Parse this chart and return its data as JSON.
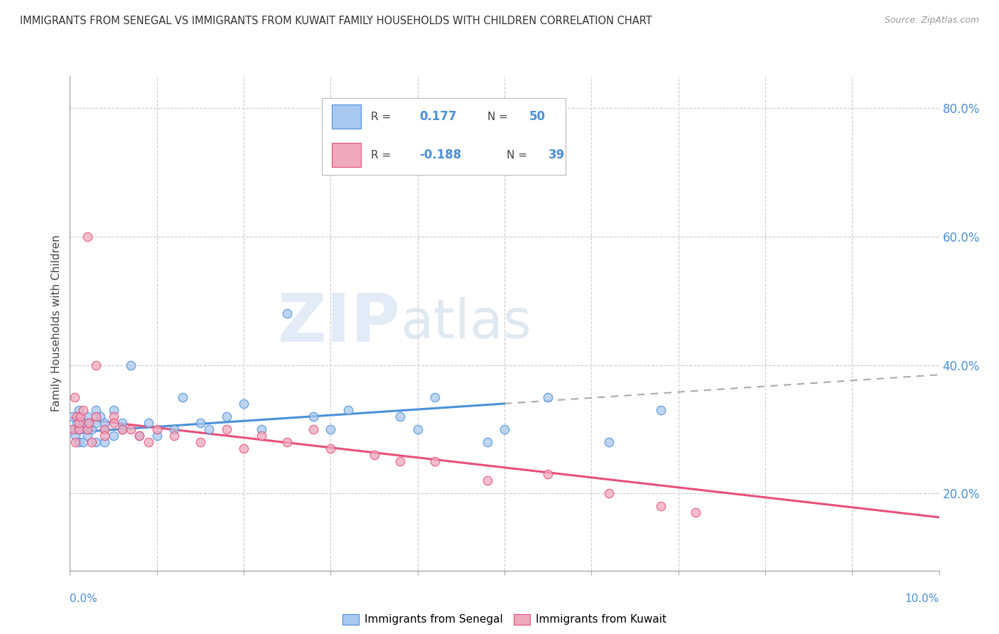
{
  "title": "IMMIGRANTS FROM SENEGAL VS IMMIGRANTS FROM KUWAIT FAMILY HOUSEHOLDS WITH CHILDREN CORRELATION CHART",
  "source": "Source: ZipAtlas.com",
  "ylabel": "Family Households with Children",
  "right_yticks": [
    "20.0%",
    "40.0%",
    "60.0%",
    "80.0%"
  ],
  "right_ytick_vals": [
    0.2,
    0.4,
    0.6,
    0.8
  ],
  "r_senegal": 0.177,
  "n_senegal": 50,
  "r_kuwait": -0.188,
  "n_kuwait": 39,
  "color_senegal": "#a8c8f0",
  "color_kuwait": "#f0a8bc",
  "color_senegal_line": "#4a90d9",
  "color_kuwait_line": "#e8507a",
  "watermark_zip": "ZIP",
  "watermark_atlas": "atlas",
  "xlim": [
    0.0,
    0.1
  ],
  "ylim": [
    0.08,
    0.85
  ],
  "senegal_x": [
    0.0003,
    0.0005,
    0.0006,
    0.0008,
    0.001,
    0.001,
    0.001,
    0.0012,
    0.0012,
    0.0015,
    0.0015,
    0.002,
    0.002,
    0.002,
    0.0022,
    0.0025,
    0.003,
    0.003,
    0.003,
    0.0035,
    0.004,
    0.004,
    0.004,
    0.005,
    0.005,
    0.006,
    0.006,
    0.007,
    0.008,
    0.009,
    0.01,
    0.012,
    0.013,
    0.015,
    0.016,
    0.018,
    0.02,
    0.022,
    0.025,
    0.028,
    0.03,
    0.032,
    0.038,
    0.04,
    0.042,
    0.048,
    0.05,
    0.055,
    0.062,
    0.068
  ],
  "senegal_y": [
    0.32,
    0.3,
    0.29,
    0.31,
    0.28,
    0.3,
    0.33,
    0.3,
    0.32,
    0.31,
    0.28,
    0.29,
    0.32,
    0.3,
    0.31,
    0.3,
    0.28,
    0.31,
    0.33,
    0.32,
    0.3,
    0.28,
    0.31,
    0.29,
    0.33,
    0.31,
    0.3,
    0.4,
    0.29,
    0.31,
    0.29,
    0.3,
    0.35,
    0.31,
    0.3,
    0.32,
    0.34,
    0.3,
    0.48,
    0.32,
    0.3,
    0.33,
    0.32,
    0.3,
    0.35,
    0.28,
    0.3,
    0.35,
    0.28,
    0.33
  ],
  "kuwait_x": [
    0.0003,
    0.0005,
    0.0006,
    0.0008,
    0.001,
    0.001,
    0.0012,
    0.0015,
    0.002,
    0.002,
    0.0022,
    0.0025,
    0.003,
    0.003,
    0.004,
    0.004,
    0.005,
    0.005,
    0.006,
    0.007,
    0.008,
    0.009,
    0.01,
    0.012,
    0.015,
    0.018,
    0.02,
    0.022,
    0.025,
    0.028,
    0.03,
    0.035,
    0.038,
    0.042,
    0.048,
    0.055,
    0.062,
    0.068,
    0.072
  ],
  "kuwait_y": [
    0.3,
    0.35,
    0.28,
    0.32,
    0.3,
    0.31,
    0.32,
    0.33,
    0.3,
    0.6,
    0.31,
    0.28,
    0.32,
    0.4,
    0.3,
    0.29,
    0.32,
    0.31,
    0.3,
    0.3,
    0.29,
    0.28,
    0.3,
    0.29,
    0.28,
    0.3,
    0.27,
    0.29,
    0.28,
    0.3,
    0.27,
    0.26,
    0.25,
    0.25,
    0.22,
    0.23,
    0.2,
    0.18,
    0.17
  ],
  "trend_x_start": 0.0,
  "senegal_trend_solid_end": 0.05,
  "trend_x_end": 0.1,
  "senegal_intercept": 0.295,
  "senegal_slope": 0.9,
  "kuwait_intercept": 0.318,
  "kuwait_slope": -1.55
}
